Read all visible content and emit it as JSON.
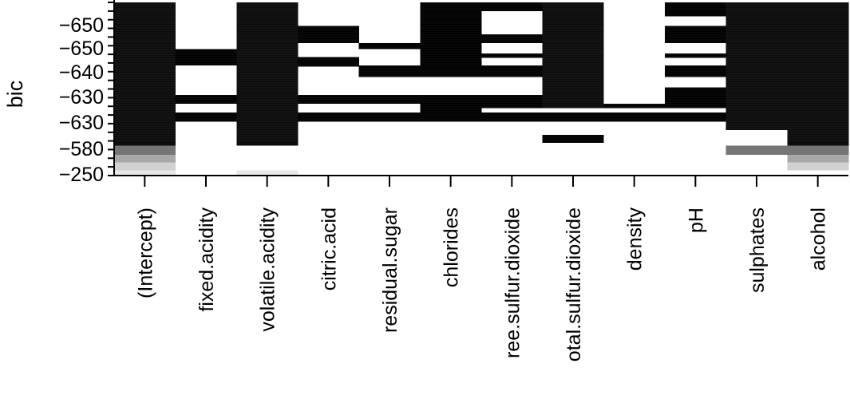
{
  "chart_data": {
    "type": "heatmap",
    "ylabel": "bic",
    "categories": [
      "(Intercept)",
      "fixed.acidity",
      "volatile.acidity",
      "citric.acid",
      "residual.sugar",
      "chlorides",
      "ree.sulfur.dioxide",
      "otal.sulfur.dioxide",
      "density",
      "pH",
      "sulphates",
      "alcohol"
    ],
    "y_tick_labels": [
      "-650",
      "-650",
      "-640",
      "-630",
      "-630",
      "-580",
      "-250"
    ],
    "colors": {
      "filled": "#000000",
      "empty": "#ffffff",
      "axis": "#000000"
    },
    "bands": [
      {
        "top": 0.0,
        "bottom": 0.738,
        "shade": "#0c0c0c"
      },
      {
        "top": 0.738,
        "bottom": 0.828,
        "shade": "#0c0c0c"
      },
      {
        "top": 0.828,
        "bottom": 0.881,
        "shade": "#757575"
      },
      {
        "top": 0.881,
        "bottom": 0.925,
        "shade": "#a8a8a8"
      },
      {
        "top": 0.925,
        "bottom": 0.97,
        "shade": "#d0d0d0"
      },
      {
        "top": 0.97,
        "bottom": 1.0,
        "shade": "#e8e8e8"
      }
    ],
    "columns": [
      {
        "name": "(Intercept)",
        "fills": [
          [
            0.0,
            0.828,
            "#0c0c0c"
          ],
          [
            0.828,
            0.881,
            "#757575"
          ],
          [
            0.881,
            0.925,
            "#a8a8a8"
          ],
          [
            0.925,
            0.97,
            "#d0d0d0"
          ],
          [
            0.97,
            1.0,
            "#e8e8e8"
          ]
        ]
      },
      {
        "name": "fixed.acidity",
        "fills": [
          [
            0.27,
            0.365,
            "#000000"
          ],
          [
            0.535,
            0.585,
            "#000000"
          ],
          [
            0.635,
            0.69,
            "#000000"
          ]
        ]
      },
      {
        "name": "volatile.acidity",
        "fills": [
          [
            0.0,
            0.828,
            "#0c0c0c"
          ],
          [
            0.97,
            1.0,
            "#e8e8e8"
          ]
        ]
      },
      {
        "name": "citric.acid",
        "fills": [
          [
            0.135,
            0.235,
            "#000000"
          ],
          [
            0.315,
            0.37,
            "#000000"
          ],
          [
            0.535,
            0.585,
            "#000000"
          ],
          [
            0.635,
            0.69,
            "#000000"
          ]
        ]
      },
      {
        "name": "residual.sugar",
        "fills": [
          [
            0.235,
            0.27,
            "#000000"
          ],
          [
            0.365,
            0.43,
            "#000000"
          ],
          [
            0.535,
            0.585,
            "#000000"
          ],
          [
            0.635,
            0.69,
            "#000000"
          ]
        ]
      },
      {
        "name": "chlorides",
        "fills": [
          [
            0.0,
            0.43,
            "#000000"
          ],
          [
            0.535,
            0.69,
            "#000000"
          ]
        ]
      },
      {
        "name": "ree.sulfur.dioxide",
        "fills": [
          [
            0.0,
            0.05,
            "#000000"
          ],
          [
            0.185,
            0.235,
            "#000000"
          ],
          [
            0.295,
            0.32,
            "#000000"
          ],
          [
            0.365,
            0.43,
            "#000000"
          ],
          [
            0.535,
            0.61,
            "#000000"
          ],
          [
            0.635,
            0.69,
            "#000000"
          ]
        ]
      },
      {
        "name": "otal.sulfur.dioxide",
        "fills": [
          [
            0.0,
            0.61,
            "#0c0c0c"
          ],
          [
            0.635,
            0.69,
            "#000000"
          ],
          [
            0.765,
            0.81,
            "#000000"
          ]
        ]
      },
      {
        "name": "density",
        "fills": [
          [
            0.585,
            0.61,
            "#000000"
          ],
          [
            0.635,
            0.69,
            "#000000"
          ]
        ]
      },
      {
        "name": "pH",
        "fills": [
          [
            0.0,
            0.08,
            "#000000"
          ],
          [
            0.135,
            0.235,
            "#000000"
          ],
          [
            0.295,
            0.32,
            "#000000"
          ],
          [
            0.365,
            0.43,
            "#000000"
          ],
          [
            0.49,
            0.61,
            "#000000"
          ],
          [
            0.635,
            0.69,
            "#000000"
          ]
        ]
      },
      {
        "name": "sulphates",
        "fills": [
          [
            0.0,
            0.738,
            "#0c0c0c"
          ],
          [
            0.828,
            0.881,
            "#757575"
          ]
        ]
      },
      {
        "name": "alcohol",
        "fills": [
          [
            0.0,
            0.828,
            "#0c0c0c"
          ],
          [
            0.828,
            0.881,
            "#757575"
          ],
          [
            0.881,
            0.925,
            "#a8a8a8"
          ],
          [
            0.925,
            0.97,
            "#d0d0d0"
          ]
        ]
      }
    ]
  }
}
